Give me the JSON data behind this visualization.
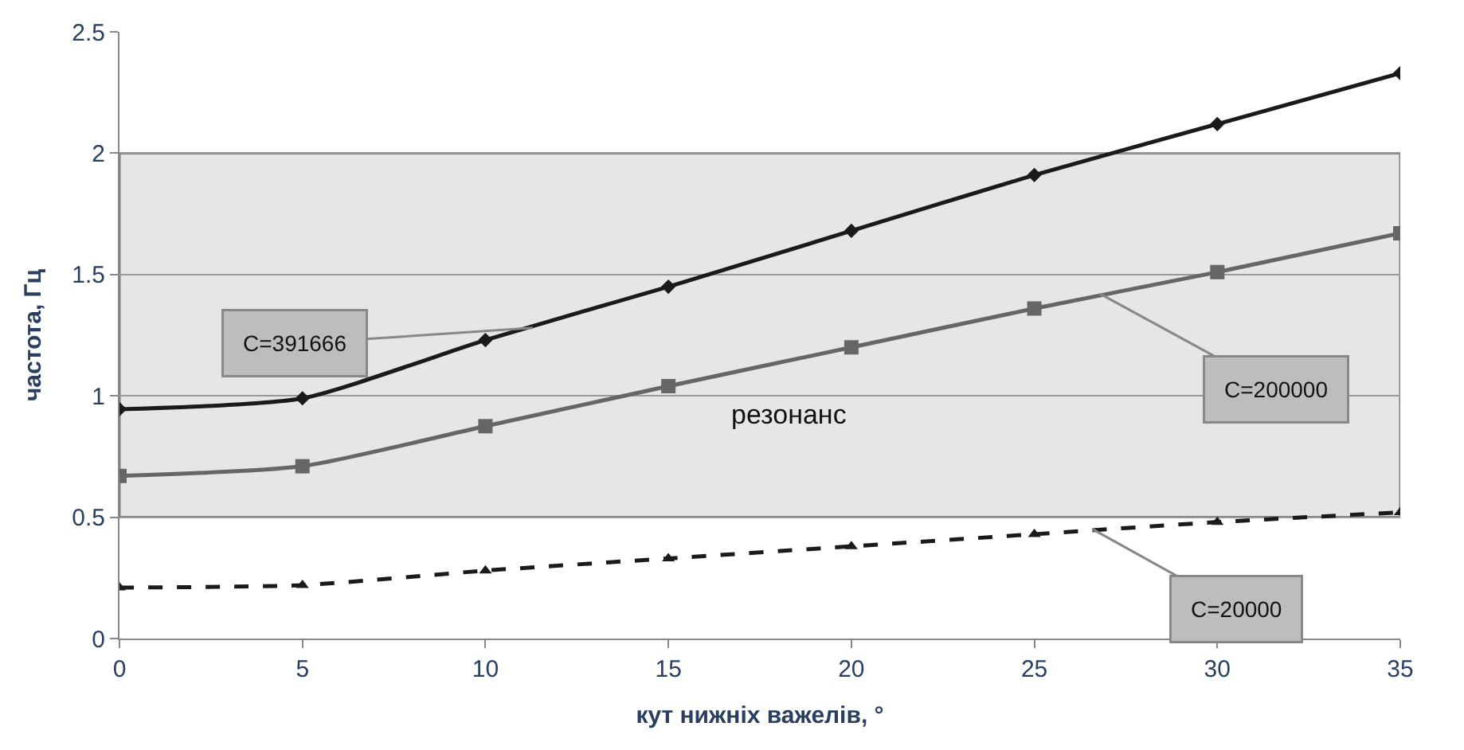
{
  "chart_data": {
    "type": "line",
    "xlabel": "кут нижніх важелів, °",
    "ylabel": "частота, Гц",
    "x": [
      0,
      5,
      10,
      15,
      20,
      25,
      30,
      35
    ],
    "series": [
      {
        "color": "#1a1a1a",
        "marker": "diamond",
        "line_style": "solid",
        "values": [
          0.945,
          0.99,
          1.23,
          1.45,
          1.68,
          1.91,
          2.12,
          2.33
        ]
      },
      {
        "color": "#666666",
        "marker": "square",
        "line_style": "solid",
        "values": [
          0.67,
          0.71,
          0.875,
          1.04,
          1.2,
          1.36,
          1.51,
          1.67
        ]
      },
      {
        "color": "#1a1a1a",
        "marker": "triangle",
        "line_style": "dashed",
        "values": [
          0.21,
          0.22,
          0.28,
          0.33,
          0.38,
          0.43,
          0.48,
          0.52
        ]
      }
    ],
    "annotations": [
      {
        "text": "C=391666",
        "x": 11.3,
        "y": 1.28
      },
      {
        "text": "C=200000",
        "x": 26.8,
        "y": 1.42
      },
      {
        "text": "C=20000",
        "x": 26.6,
        "y": 0.45
      }
    ],
    "bands": [
      {
        "axis": "y",
        "from": 0.5,
        "to": 2,
        "label": "резонанс",
        "color": "#e6e6e6"
      }
    ],
    "xlim": [
      0,
      35
    ],
    "xticks": [
      0,
      5,
      10,
      15,
      20,
      25,
      30,
      35
    ],
    "ylim": [
      0,
      2.5
    ],
    "yticks": [
      0,
      0.5,
      1,
      1.5,
      2,
      2.5
    ],
    "grid": "y",
    "legend": false
  }
}
